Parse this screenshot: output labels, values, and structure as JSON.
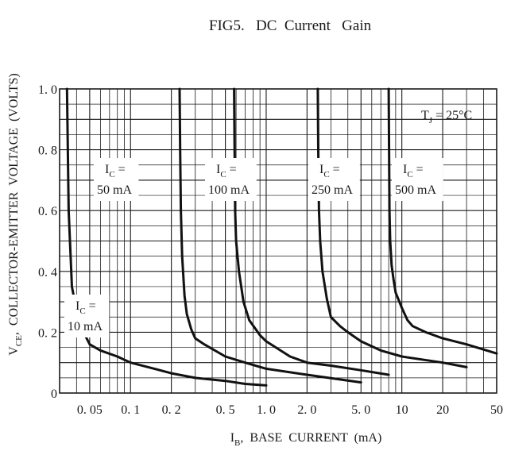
{
  "chart_data": {
    "type": "line",
    "title": "FIG5.   DC  Current   Gain",
    "xlabel": {
      "main": "I",
      "sub": "B",
      "rest": ",  BASE  CURRENT  (mA)"
    },
    "ylabel": {
      "main": "V",
      "sub": "CE",
      "rest": ",  COLLECTOR-EMITTER  VOLTAGE  (VOLTS)"
    },
    "x_scale": "log",
    "xlim": [
      0.03,
      50
    ],
    "ylim": [
      0,
      1.0
    ],
    "grid": true,
    "x_ticks": [
      {
        "value": 0.05,
        "label": "0. 05"
      },
      {
        "value": 0.1,
        "label": "0. 1"
      },
      {
        "value": 0.2,
        "label": "0. 2"
      },
      {
        "value": 0.5,
        "label": "0. 5"
      },
      {
        "value": 1.0,
        "label": "1. 0"
      },
      {
        "value": 2.0,
        "label": "2. 0"
      },
      {
        "value": 5.0,
        "label": "5. 0"
      },
      {
        "value": 10,
        "label": "10"
      },
      {
        "value": 20,
        "label": "20"
      },
      {
        "value": 50,
        "label": "50"
      }
    ],
    "y_ticks": [
      {
        "value": 0,
        "label": "0"
      },
      {
        "value": 0.2,
        "label": "0. 2"
      },
      {
        "value": 0.4,
        "label": "0. 4"
      },
      {
        "value": 0.6,
        "label": "0. 6"
      },
      {
        "value": 0.8,
        "label": "0. 8"
      },
      {
        "value": 1.0,
        "label": "1. 0"
      }
    ],
    "annotation": {
      "main": "T",
      "sub": "J",
      "rest": " = 25°C"
    },
    "series": [
      {
        "label": [
          "I",
          "C",
          " =",
          "10  mA"
        ],
        "x": [
          0.034,
          0.035,
          0.037,
          0.04,
          0.045,
          0.05,
          0.06,
          0.08,
          0.1,
          0.15,
          0.2,
          0.3,
          0.5,
          0.7,
          1.0
        ],
        "y": [
          1.0,
          0.6,
          0.35,
          0.27,
          0.2,
          0.16,
          0.14,
          0.12,
          0.1,
          0.08,
          0.065,
          0.05,
          0.04,
          0.03,
          0.025
        ]
      },
      {
        "label": [
          "I",
          "C",
          " =",
          "50  mA"
        ],
        "x": [
          0.23,
          0.232,
          0.235,
          0.24,
          0.25,
          0.26,
          0.28,
          0.3,
          0.35,
          0.5,
          0.7,
          1.0,
          2.0,
          5.0
        ],
        "y": [
          1.0,
          0.8,
          0.6,
          0.45,
          0.32,
          0.26,
          0.21,
          0.18,
          0.16,
          0.12,
          0.1,
          0.08,
          0.06,
          0.035
        ]
      },
      {
        "label": [
          "I",
          "C",
          " =",
          "100  mA"
        ],
        "x": [
          0.58,
          0.585,
          0.59,
          0.6,
          0.63,
          0.68,
          0.75,
          0.9,
          1.0,
          1.5,
          2.0,
          3.0,
          5.0,
          8.0
        ],
        "y": [
          1.0,
          0.8,
          0.6,
          0.5,
          0.4,
          0.3,
          0.24,
          0.19,
          0.17,
          0.12,
          0.1,
          0.09,
          0.075,
          0.06
        ]
      },
      {
        "label": [
          "I",
          "C",
          " =",
          "250  mA"
        ],
        "x": [
          2.4,
          2.42,
          2.45,
          2.5,
          2.6,
          2.8,
          3.0,
          3.5,
          4.0,
          5.0,
          7.0,
          10,
          20,
          30
        ],
        "y": [
          1.0,
          0.8,
          0.6,
          0.5,
          0.4,
          0.31,
          0.25,
          0.22,
          0.2,
          0.17,
          0.14,
          0.12,
          0.1,
          0.085
        ]
      },
      {
        "label": [
          "I",
          "C",
          " =",
          "500  mA"
        ],
        "x": [
          8.0,
          8.05,
          8.1,
          8.2,
          8.4,
          8.7,
          9.0,
          10,
          11,
          12,
          15,
          20,
          30,
          50
        ],
        "y": [
          1.0,
          0.8,
          0.6,
          0.5,
          0.42,
          0.37,
          0.33,
          0.28,
          0.24,
          0.22,
          0.2,
          0.18,
          0.16,
          0.13
        ]
      }
    ]
  }
}
